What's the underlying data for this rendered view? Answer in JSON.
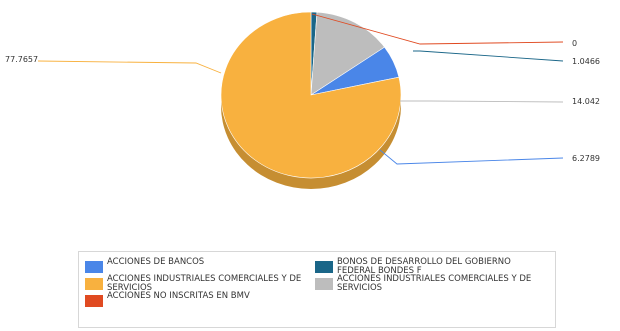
{
  "chart_data": {
    "type": "pie",
    "title": "",
    "slices": [
      {
        "label": "ACCIONES DE BANCOS",
        "value": 6.2789,
        "color": "#4a86e8"
      },
      {
        "label": "ACCIONES INDUSTRIALES COMERCIALES Y DE SERVICIOS",
        "value": 77.7657,
        "color": "#f8b13f"
      },
      {
        "label": "ACCIONES NO INSCRITAS EN BMV",
        "value": 0,
        "color": "#e04a21"
      },
      {
        "label": "BONOS DE DESARROLLO DEL GOBIERNO FEDERAL BONDES F",
        "value": 1.0466,
        "color": "#1a6688"
      },
      {
        "label": "ACCIONES INDUSTRIALES COMERCIALES Y DE SERVICIOS",
        "value": 14.042,
        "color": "#bdbdbd"
      }
    ],
    "value_labels": [
      "6.2789",
      "77.7657",
      "0",
      "1.0466",
      "14.042"
    ],
    "legend_position": "bottom",
    "style": "3d-pie"
  }
}
